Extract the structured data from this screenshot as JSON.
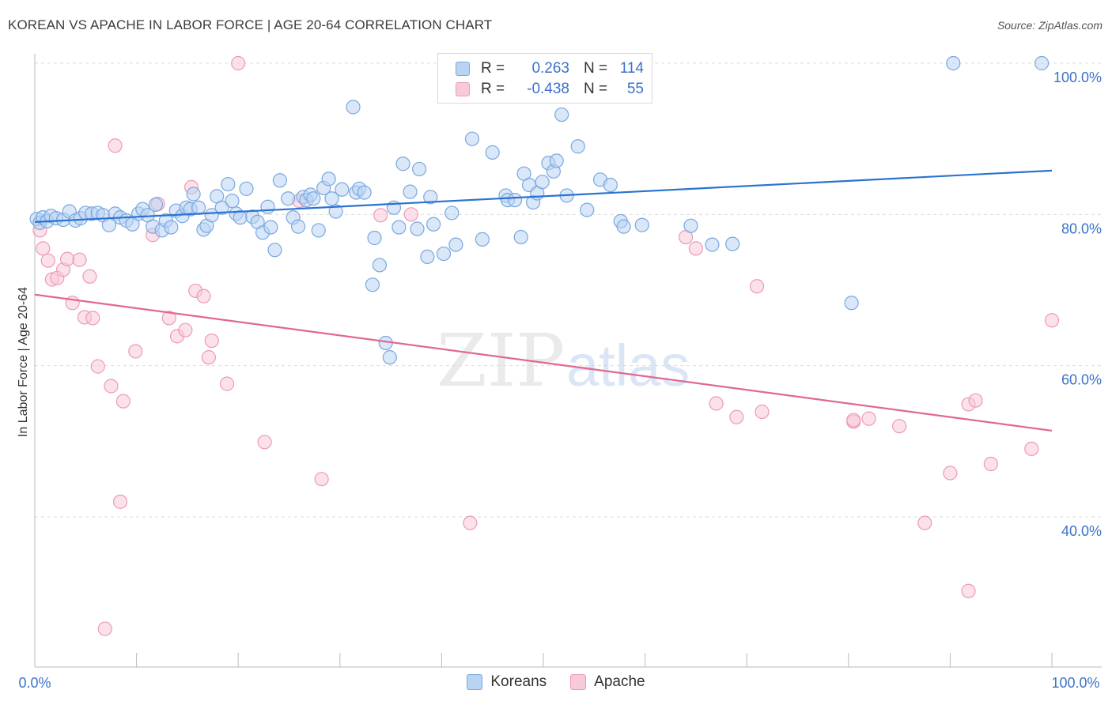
{
  "header": {
    "title": "KOREAN VS APACHE IN LABOR FORCE | AGE 20-64 CORRELATION CHART",
    "source": "Source: ZipAtlas.com"
  },
  "watermark": {
    "zip": "ZIP",
    "atlas": "atlas"
  },
  "legend": {
    "rows": [
      {
        "r_label": "R =",
        "r_value": "0.263",
        "n_label": "N =",
        "n_value": "114",
        "color": "#9ec3ef"
      },
      {
        "r_label": "R =",
        "r_value": "-0.438",
        "n_label": "N =",
        "n_value": "55",
        "color": "#f6b8cc"
      }
    ]
  },
  "bottom_legend": {
    "koreans": "Koreans",
    "apache": "Apache"
  },
  "colors": {
    "blue_fill": "#b9d3f3",
    "blue_stroke": "#7aa8e0",
    "blue_line": "#2b73d1",
    "pink_fill": "#f8c9d8",
    "pink_stroke": "#ee9ab6",
    "pink_line": "#e1688f",
    "tick_label": "#3b73c8",
    "grid": "#dcdcdc"
  },
  "chart_data": {
    "type": "scatter",
    "title": "KOREAN VS APACHE IN LABOR FORCE | AGE 20-64 CORRELATION CHART",
    "xlabel": "",
    "ylabel": "In Labor Force | Age 20-64",
    "xlim": [
      0,
      100
    ],
    "ylim": [
      20,
      102
    ],
    "x_tick_labels": [
      "0.0%",
      "100.0%"
    ],
    "y_ticks": [
      40,
      60,
      80,
      100
    ],
    "y_tick_labels": [
      "40.0%",
      "60.0%",
      "80.0%",
      "100.0%"
    ],
    "grid": true,
    "legend_position": "top-center",
    "series": [
      {
        "name": "Koreans",
        "color": "#7aa8e0",
        "trend": {
          "x": [
            0,
            100
          ],
          "y": [
            79.0,
            85.8
          ]
        },
        "points": [
          [
            0.2,
            79.4
          ],
          [
            0.5,
            78.9
          ],
          [
            0.8,
            79.6
          ],
          [
            1.2,
            79.1
          ],
          [
            1.6,
            79.8
          ],
          [
            2.1,
            79.5
          ],
          [
            2.8,
            79.3
          ],
          [
            3.4,
            80.4
          ],
          [
            4.0,
            79.2
          ],
          [
            4.5,
            79.5
          ],
          [
            5.0,
            80.2
          ],
          [
            5.6,
            80.1
          ],
          [
            6.2,
            80.2
          ],
          [
            6.7,
            79.9
          ],
          [
            7.3,
            78.6
          ],
          [
            7.9,
            80.1
          ],
          [
            8.4,
            79.6
          ],
          [
            9.0,
            79.2
          ],
          [
            9.6,
            78.7
          ],
          [
            10.2,
            80.1
          ],
          [
            10.6,
            80.7
          ],
          [
            11.1,
            79.9
          ],
          [
            11.6,
            78.4
          ],
          [
            11.9,
            81.3
          ],
          [
            12.5,
            77.9
          ],
          [
            12.9,
            79.2
          ],
          [
            13.4,
            78.3
          ],
          [
            13.9,
            80.5
          ],
          [
            14.5,
            79.8
          ],
          [
            14.9,
            80.9
          ],
          [
            15.3,
            80.7
          ],
          [
            15.6,
            82.7
          ],
          [
            16.1,
            80.9
          ],
          [
            16.6,
            78.0
          ],
          [
            16.9,
            78.5
          ],
          [
            17.4,
            79.9
          ],
          [
            17.9,
            82.4
          ],
          [
            18.4,
            80.9
          ],
          [
            19.0,
            84.0
          ],
          [
            19.4,
            81.8
          ],
          [
            19.8,
            80.1
          ],
          [
            20.2,
            79.6
          ],
          [
            20.8,
            83.4
          ],
          [
            21.4,
            79.7
          ],
          [
            21.9,
            79.0
          ],
          [
            22.4,
            77.6
          ],
          [
            22.9,
            81.0
          ],
          [
            23.2,
            78.3
          ],
          [
            23.6,
            75.3
          ],
          [
            24.1,
            84.5
          ],
          [
            24.9,
            82.1
          ],
          [
            25.4,
            79.6
          ],
          [
            25.9,
            78.4
          ],
          [
            26.4,
            82.3
          ],
          [
            26.7,
            81.9
          ],
          [
            27.1,
            82.6
          ],
          [
            27.4,
            82.1
          ],
          [
            27.9,
            77.9
          ],
          [
            28.4,
            83.5
          ],
          [
            28.9,
            84.7
          ],
          [
            29.2,
            82.1
          ],
          [
            29.6,
            80.4
          ],
          [
            30.2,
            83.3
          ],
          [
            31.3,
            94.2
          ],
          [
            31.6,
            82.9
          ],
          [
            31.9,
            83.4
          ],
          [
            32.4,
            82.9
          ],
          [
            33.2,
            70.7
          ],
          [
            33.4,
            76.9
          ],
          [
            33.9,
            73.3
          ],
          [
            34.5,
            63.0
          ],
          [
            34.9,
            61.1
          ],
          [
            35.3,
            80.9
          ],
          [
            35.8,
            78.3
          ],
          [
            36.2,
            86.7
          ],
          [
            36.9,
            83.0
          ],
          [
            37.6,
            78.1
          ],
          [
            37.8,
            86.0
          ],
          [
            38.6,
            74.4
          ],
          [
            38.9,
            82.3
          ],
          [
            39.2,
            78.7
          ],
          [
            40.2,
            74.8
          ],
          [
            41.0,
            80.2
          ],
          [
            41.4,
            76.0
          ],
          [
            43.0,
            90.0
          ],
          [
            44.0,
            76.7
          ],
          [
            45.0,
            88.2
          ],
          [
            46.3,
            82.5
          ],
          [
            46.5,
            81.9
          ],
          [
            47.2,
            81.9
          ],
          [
            47.8,
            77.0
          ],
          [
            48.1,
            85.4
          ],
          [
            48.6,
            83.9
          ],
          [
            49.0,
            81.6
          ],
          [
            49.4,
            82.8
          ],
          [
            49.9,
            84.3
          ],
          [
            50.5,
            86.8
          ],
          [
            51.0,
            85.7
          ],
          [
            51.3,
            87.1
          ],
          [
            51.8,
            93.2
          ],
          [
            52.3,
            82.5
          ],
          [
            53.4,
            89.0
          ],
          [
            54.3,
            80.6
          ],
          [
            55.6,
            84.6
          ],
          [
            56.6,
            83.9
          ],
          [
            57.6,
            79.1
          ],
          [
            57.9,
            78.4
          ],
          [
            59.7,
            78.6
          ],
          [
            64.5,
            78.5
          ],
          [
            66.6,
            76.0
          ],
          [
            68.6,
            76.1
          ],
          [
            80.3,
            68.3
          ],
          [
            90.3,
            100.0
          ],
          [
            99.0,
            100.0
          ]
        ]
      },
      {
        "name": "Apache",
        "color": "#ee9ab6",
        "trend": {
          "x": [
            0,
            100
          ],
          "y": [
            69.4,
            51.4
          ]
        },
        "points": [
          [
            0.5,
            77.9
          ],
          [
            0.8,
            75.5
          ],
          [
            1.3,
            73.9
          ],
          [
            1.7,
            71.4
          ],
          [
            2.2,
            71.6
          ],
          [
            2.8,
            72.7
          ],
          [
            3.2,
            74.1
          ],
          [
            3.7,
            68.3
          ],
          [
            4.4,
            74.0
          ],
          [
            4.9,
            66.4
          ],
          [
            5.4,
            71.8
          ],
          [
            5.7,
            66.3
          ],
          [
            6.2,
            59.9
          ],
          [
            6.9,
            25.2
          ],
          [
            7.5,
            57.3
          ],
          [
            7.9,
            89.1
          ],
          [
            8.4,
            42.0
          ],
          [
            8.7,
            55.3
          ],
          [
            9.9,
            61.9
          ],
          [
            11.6,
            77.3
          ],
          [
            12.1,
            81.4
          ],
          [
            13.2,
            66.3
          ],
          [
            14.0,
            63.9
          ],
          [
            14.8,
            64.7
          ],
          [
            15.4,
            83.6
          ],
          [
            15.8,
            69.9
          ],
          [
            16.6,
            69.2
          ],
          [
            17.1,
            61.1
          ],
          [
            17.4,
            63.3
          ],
          [
            18.9,
            57.6
          ],
          [
            20.0,
            100.0
          ],
          [
            22.6,
            49.9
          ],
          [
            26.0,
            81.8
          ],
          [
            28.2,
            45.0
          ],
          [
            34.0,
            79.9
          ],
          [
            37.0,
            80.0
          ],
          [
            42.8,
            39.2
          ],
          [
            64.0,
            77.0
          ],
          [
            65.0,
            75.5
          ],
          [
            67.0,
            55.0
          ],
          [
            69.0,
            53.2
          ],
          [
            71.0,
            70.5
          ],
          [
            71.5,
            53.9
          ],
          [
            80.5,
            52.6
          ],
          [
            82.0,
            53.0
          ],
          [
            85.0,
            52.0
          ],
          [
            87.5,
            39.2
          ],
          [
            90.0,
            45.8
          ],
          [
            91.8,
            30.2
          ],
          [
            91.8,
            54.9
          ],
          [
            92.5,
            55.4
          ],
          [
            94.0,
            47.0
          ],
          [
            98.0,
            49.0
          ],
          [
            100.0,
            66.0
          ],
          [
            80.5,
            52.8
          ]
        ]
      }
    ]
  }
}
